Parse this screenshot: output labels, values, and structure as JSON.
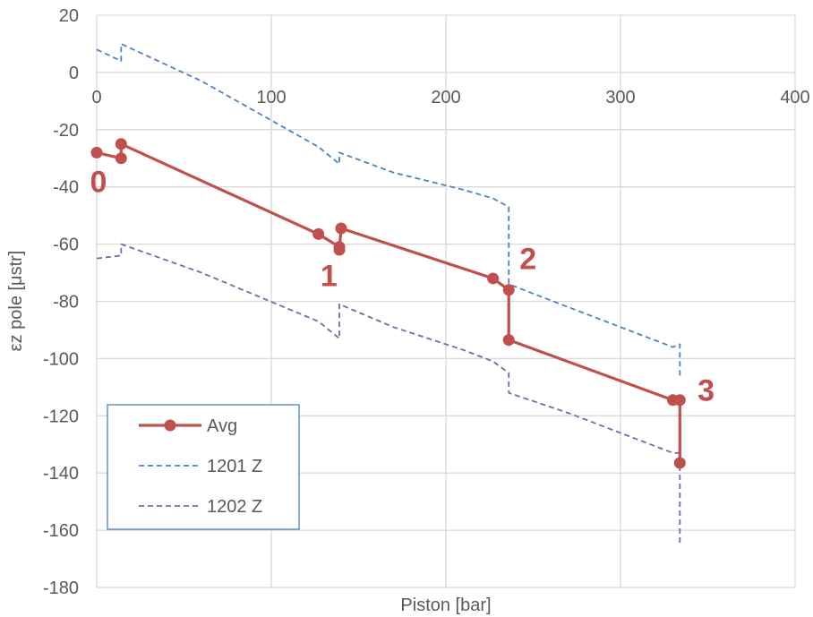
{
  "chart_data": {
    "type": "line",
    "xlabel": "Piston [bar]",
    "ylabel": "εz pole [μstr]",
    "xlim": [
      0,
      400
    ],
    "ylim": [
      -180,
      20
    ],
    "x_ticks": [
      "0",
      "100",
      "200",
      "300",
      "400"
    ],
    "y_ticks": [
      "20",
      "0",
      "-20",
      "-40",
      "-60",
      "-80",
      "-100",
      "-120",
      "-140",
      "-160",
      "-180"
    ],
    "grid": true,
    "legend_position": "bottom-left",
    "series": [
      {
        "name": "Avg",
        "color": "#c0504d",
        "style": "solid-with-markers",
        "points": [
          [
            0,
            -28
          ],
          [
            14,
            -30
          ],
          [
            14,
            -25
          ],
          [
            127,
            -56.5
          ],
          [
            139,
            -61
          ],
          [
            139,
            -62
          ],
          [
            140,
            -54.5
          ],
          [
            227,
            -72
          ],
          [
            236,
            -76
          ],
          [
            236,
            -93.5
          ],
          [
            330,
            -114.5
          ],
          [
            334,
            -114.5
          ],
          [
            334,
            -136.5
          ]
        ]
      },
      {
        "name": "1201 Z",
        "color": "#4f81bd",
        "style": "dashed",
        "points": [
          [
            0,
            8
          ],
          [
            14,
            4
          ],
          [
            14,
            10
          ],
          [
            60,
            -3
          ],
          [
            127,
            -26
          ],
          [
            139,
            -32
          ],
          [
            139,
            -28
          ],
          [
            170,
            -35
          ],
          [
            210,
            -41
          ],
          [
            227,
            -44
          ],
          [
            236,
            -47
          ],
          [
            236,
            -74
          ],
          [
            270,
            -82
          ],
          [
            330,
            -96
          ],
          [
            334,
            -95
          ],
          [
            334,
            -106
          ]
        ]
      },
      {
        "name": "1202 Z",
        "color": "#8064a2",
        "style": "dashed",
        "points": [
          [
            0,
            -65
          ],
          [
            14,
            -64
          ],
          [
            14,
            -60
          ],
          [
            60,
            -70
          ],
          [
            127,
            -87
          ],
          [
            139,
            -93
          ],
          [
            139,
            -81
          ],
          [
            170,
            -89
          ],
          [
            210,
            -97
          ],
          [
            227,
            -101
          ],
          [
            236,
            -105
          ],
          [
            236,
            -112
          ],
          [
            270,
            -119
          ],
          [
            330,
            -133
          ],
          [
            334,
            -133
          ],
          [
            334,
            -165
          ]
        ]
      }
    ],
    "annotations": [
      {
        "text": "0",
        "x": 1,
        "y": -38
      },
      {
        "text": "1",
        "x": 133,
        "y": -71
      },
      {
        "text": "2",
        "x": 247,
        "y": -65
      },
      {
        "text": "3",
        "x": 349,
        "y": -111
      }
    ]
  }
}
